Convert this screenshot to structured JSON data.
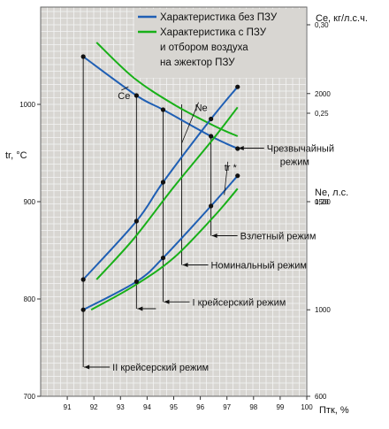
{
  "chart_data": {
    "type": "line",
    "xlabel": "Птк, %",
    "x_ticks": [
      91,
      92,
      93,
      94,
      95,
      96,
      97,
      98,
      99,
      100
    ],
    "xlim": [
      90,
      100
    ],
    "axes": {
      "tr": {
        "label": "tr,  °C",
        "range": [
          700,
          1100
        ],
        "ticks": [
          "700",
          "800",
          "900",
          "1000"
        ]
      },
      "ce": {
        "label": "Ce, кг/л.с.ч.",
        "range": [
          0.09,
          0.31
        ],
        "ticks": [
          "0,30",
          "0,25",
          "0,20"
        ]
      },
      "ne": {
        "label": "Ne, л.с.",
        "range": [
          600,
          2400
        ],
        "ticks": [
          "600",
          "1000",
          "1500",
          "2000"
        ]
      }
    },
    "legend": [
      {
        "label": "Характеристика без ПЗУ",
        "color": "#1f5fb4"
      },
      {
        "label": "Характеристика с ПЗУ и отбором воздуха на эжектор ПЗУ",
        "color": "#18b018"
      }
    ],
    "legend_lines": [
      "Характеристика без ПЗУ",
      "Характеристика с ПЗУ",
      "и отбором воздуха",
      "на эжектор ПЗУ"
    ],
    "series": [
      {
        "name": "Характеристика без ПЗУ",
        "quantity": "Ce",
        "axis": "ce",
        "color": "#1f5fb4",
        "x": [
          91.6,
          93.6,
          94.6,
          96.4,
          97.4
        ],
        "values": [
          0.282,
          0.26,
          0.252,
          0.237,
          0.23
        ],
        "markers": true
      },
      {
        "name": "Характеристика с ПЗУ и отбором воздуха на эжектор ПЗУ",
        "quantity": "Ce",
        "axis": "ce",
        "color": "#18b018",
        "x": [
          92.1,
          93.5,
          95.0,
          96.5,
          97.4
        ],
        "values": [
          0.29,
          0.27,
          0.255,
          0.243,
          0.237
        ],
        "markers": false
      },
      {
        "name": "Характеристика без ПЗУ",
        "quantity": "tr",
        "axis": "tr",
        "color": "#1f5fb4",
        "x": [
          91.6,
          93.6,
          94.6,
          96.4,
          97.4
        ],
        "values": [
          820,
          880,
          920,
          985,
          1018
        ],
        "markers": true
      },
      {
        "name": "Характеристика с ПЗУ и отбором воздуха на эжектор ПЗУ",
        "quantity": "tr",
        "axis": "tr",
        "color": "#18b018",
        "x": [
          92.1,
          93.5,
          95.0,
          96.5,
          97.4
        ],
        "values": [
          820,
          862,
          915,
          965,
          997
        ],
        "markers": false
      },
      {
        "name": "Характеристика без ПЗУ",
        "quantity": "Ne",
        "axis": "ne",
        "color": "#1f5fb4",
        "x": [
          91.6,
          93.6,
          94.6,
          96.4,
          97.4
        ],
        "values": [
          1000,
          1130,
          1240,
          1480,
          1620
        ],
        "markers": true
      },
      {
        "name": "Характеристика с ПЗУ и отбором воздуха на эжектор ПЗУ",
        "quantity": "Ne",
        "axis": "ne",
        "color": "#18b018",
        "x": [
          91.9,
          93.5,
          95.0,
          96.5,
          97.4
        ],
        "values": [
          1000,
          1110,
          1240,
          1430,
          1560
        ],
        "markers": false
      }
    ],
    "curve_labels": [
      {
        "text": "Ce",
        "x": 92.9,
        "axis": "ce",
        "value": 0.258,
        "target_x": 93.3,
        "target_value": 0.265
      },
      {
        "text": "Ne",
        "x": 95.8,
        "axis": "tr",
        "value": 993,
        "target_x": 95.3,
        "target_value": 960
      },
      {
        "text": "tr *",
        "x": 96.9,
        "axis": "tr",
        "value": 932,
        "target_x": 96.9,
        "target_value": 907
      }
    ],
    "modes": [
      {
        "label": "Чрезвычайный",
        "label2": "режим",
        "x": 97.4,
        "axis": "tr",
        "value": 955
      },
      {
        "label": "Взлетный режим",
        "x": 96.4,
        "axis": "tr",
        "value": 865
      },
      {
        "label": "Номинальный режим",
        "x": 95.3,
        "axis": "tr",
        "value": 835
      },
      {
        "label": "I крейсерский режим",
        "x": 94.6,
        "axis": "tr",
        "value": 797
      },
      {
        "label": "",
        "x": 93.6,
        "axis": "tr",
        "value": 790
      },
      {
        "label": "II крейсерский режим",
        "x": 91.6,
        "axis": "tr",
        "value": 730
      }
    ],
    "grid": true,
    "background": "#d8d6d2",
    "grid_color": "#f4f4f4"
  }
}
